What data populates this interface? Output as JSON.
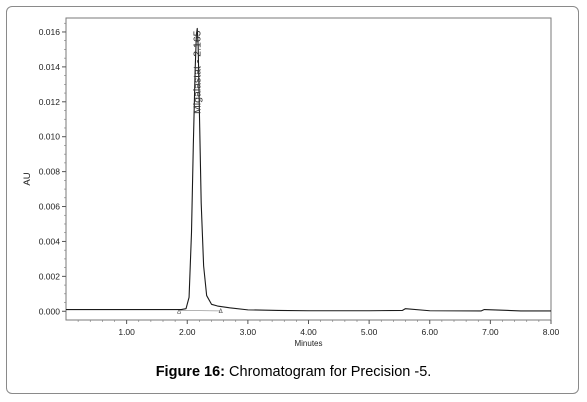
{
  "figure": {
    "caption_label": "Figure 16:",
    "caption_text": " Chromatogram for Precision -5."
  },
  "chart_data": {
    "type": "line",
    "title": "",
    "xlabel": "Minutes",
    "ylabel": "AU",
    "xlim": [
      0,
      8
    ],
    "ylim": [
      -0.0005,
      0.0168
    ],
    "x_ticks": [
      1,
      2,
      3,
      4,
      5,
      6,
      7,
      8
    ],
    "x_tick_labels": [
      "1.00",
      "2.00",
      "3.00",
      "4.00",
      "5.00",
      "6.00",
      "7.00",
      "8.00"
    ],
    "y_ticks": [
      0,
      0.002,
      0.004,
      0.006,
      0.008,
      0.01,
      0.012,
      0.014,
      0.016
    ],
    "y_tick_labels": [
      "0.000",
      "0.002",
      "0.004",
      "0.006",
      "0.008",
      "0.010",
      "0.012",
      "0.014",
      "0.016"
    ],
    "grid": false,
    "series": [
      {
        "x": [
          0,
          1.0,
          1.9,
          1.98,
          2.03,
          2.07,
          2.1,
          2.13,
          2.15,
          2.165,
          2.18,
          2.2,
          2.23,
          2.27,
          2.32,
          2.4,
          2.5,
          2.7,
          3.0,
          3.5,
          4.0,
          5.0,
          5.55,
          5.6,
          6.0,
          6.85,
          6.9,
          7.5,
          8.0
        ],
        "y": [
          0.0001,
          0.0001,
          0.0001,
          0.00015,
          0.0008,
          0.0045,
          0.0095,
          0.0138,
          0.0158,
          0.0162,
          0.0152,
          0.0115,
          0.0062,
          0.0026,
          0.0009,
          0.0004,
          0.0003,
          0.0002,
          8e-05,
          5e-05,
          3e-05,
          3e-05,
          5e-05,
          0.00015,
          3e-05,
          2e-05,
          0.0001,
          2e-05,
          2e-05
        ]
      }
    ],
    "annotations": [
      {
        "text": "Migalastat - 2.165",
        "x": 2.165,
        "y": 0.0162,
        "orientation": "vertical"
      }
    ]
  }
}
